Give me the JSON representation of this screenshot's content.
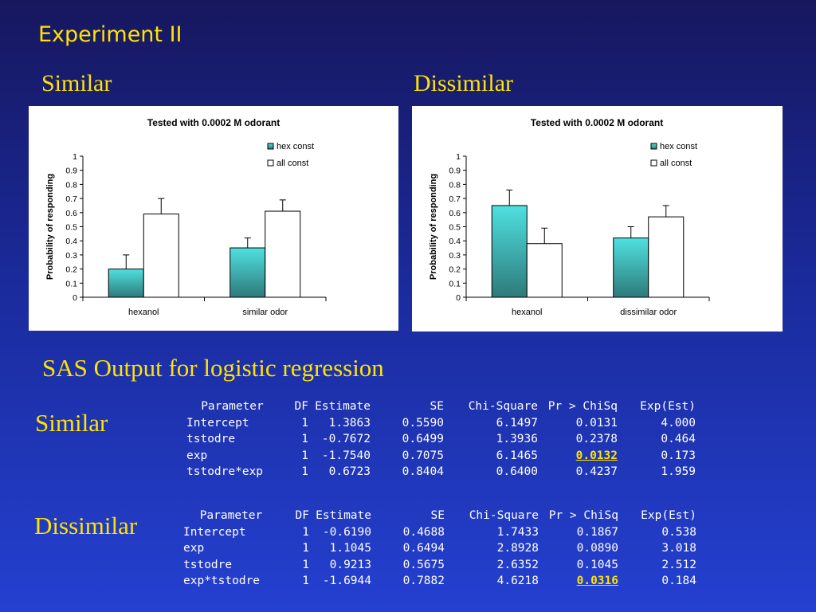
{
  "slide": {
    "title": "Experiment II",
    "left_label": "Similar",
    "right_label": "Dissimilar",
    "sas_heading": "SAS Output for logistic regression",
    "table1_label": "Similar",
    "table2_label": "Dissimilar",
    "accent_color": "#ffe300"
  },
  "chart_data": [
    {
      "type": "bar",
      "title": "Tested with 0.0002 M odorant",
      "ylabel": "Probability of responding",
      "xlabel": "",
      "ylim": [
        0,
        1
      ],
      "yticks": [
        "0",
        "0.1",
        "0.2",
        "0.3",
        "0.4",
        "0.5",
        "0.6",
        "0.7",
        "0.8",
        "0.9",
        "1"
      ],
      "categories": [
        "hexanol",
        "similar odor"
      ],
      "legend_position": "top-right",
      "series": [
        {
          "name": "hex const",
          "color": "#2fb8b8",
          "values": [
            0.2,
            0.35
          ],
          "errors": [
            0.1,
            0.07
          ]
        },
        {
          "name": "all const",
          "color": "#ffffff",
          "values": [
            0.59,
            0.61
          ],
          "errors": [
            0.11,
            0.08
          ]
        }
      ]
    },
    {
      "type": "bar",
      "title": "Tested with 0.0002 M odorant",
      "ylabel": "Probability of responding",
      "xlabel": "",
      "ylim": [
        0,
        1
      ],
      "yticks": [
        "0",
        "0.1",
        "0.2",
        "0.3",
        "0.4",
        "0.5",
        "0.6",
        "0.7",
        "0.8",
        "0.9",
        "1"
      ],
      "categories": [
        "hexanol",
        "dissimilar odor"
      ],
      "legend_position": "top-right",
      "series": [
        {
          "name": "hex const",
          "color": "#2fb8b8",
          "values": [
            0.65,
            0.42
          ],
          "errors": [
            0.11,
            0.08
          ]
        },
        {
          "name": "all const",
          "color": "#ffffff",
          "values": [
            0.38,
            0.57
          ],
          "errors": [
            0.11,
            0.08
          ]
        }
      ]
    }
  ],
  "table_similar": {
    "headers": [
      "Parameter",
      "DF",
      "Estimate",
      "SE",
      "Chi-Square",
      "Pr > ChiSq",
      "Exp(Est)"
    ],
    "rows": [
      [
        "Intercept",
        "1",
        "1.3863",
        "0.5590",
        "6.1497",
        "0.0131",
        "4.000"
      ],
      [
        "tstodre",
        "1",
        "-0.7672",
        "0.6499",
        "1.3936",
        "0.2378",
        "0.464"
      ],
      [
        "exp",
        "1",
        "-1.7540",
        "0.7075",
        "6.1465",
        "0.0132",
        "0.173"
      ],
      [
        "tstodre*exp",
        "1",
        "0.6723",
        "0.8404",
        "0.6400",
        "0.4237",
        "1.959"
      ]
    ],
    "highlight": {
      "row": 2,
      "col": 5
    }
  },
  "table_dissimilar": {
    "headers": [
      "Parameter",
      "DF",
      "Estimate",
      "SE",
      "Chi-Square",
      "Pr > ChiSq",
      "Exp(Est)"
    ],
    "rows": [
      [
        "Intercept",
        "1",
        "-0.6190",
        "0.4688",
        "1.7433",
        "0.1867",
        "0.538"
      ],
      [
        "exp",
        "1",
        "1.1045",
        "0.6494",
        "2.8928",
        "0.0890",
        "3.018"
      ],
      [
        "tstodre",
        "1",
        "0.9213",
        "0.5675",
        "2.6352",
        "0.1045",
        "2.512"
      ],
      [
        "exp*tstodre",
        "1",
        "-1.6944",
        "0.7882",
        "4.6218",
        "0.0316",
        "0.184"
      ]
    ],
    "highlight": {
      "row": 3,
      "col": 5
    }
  }
}
